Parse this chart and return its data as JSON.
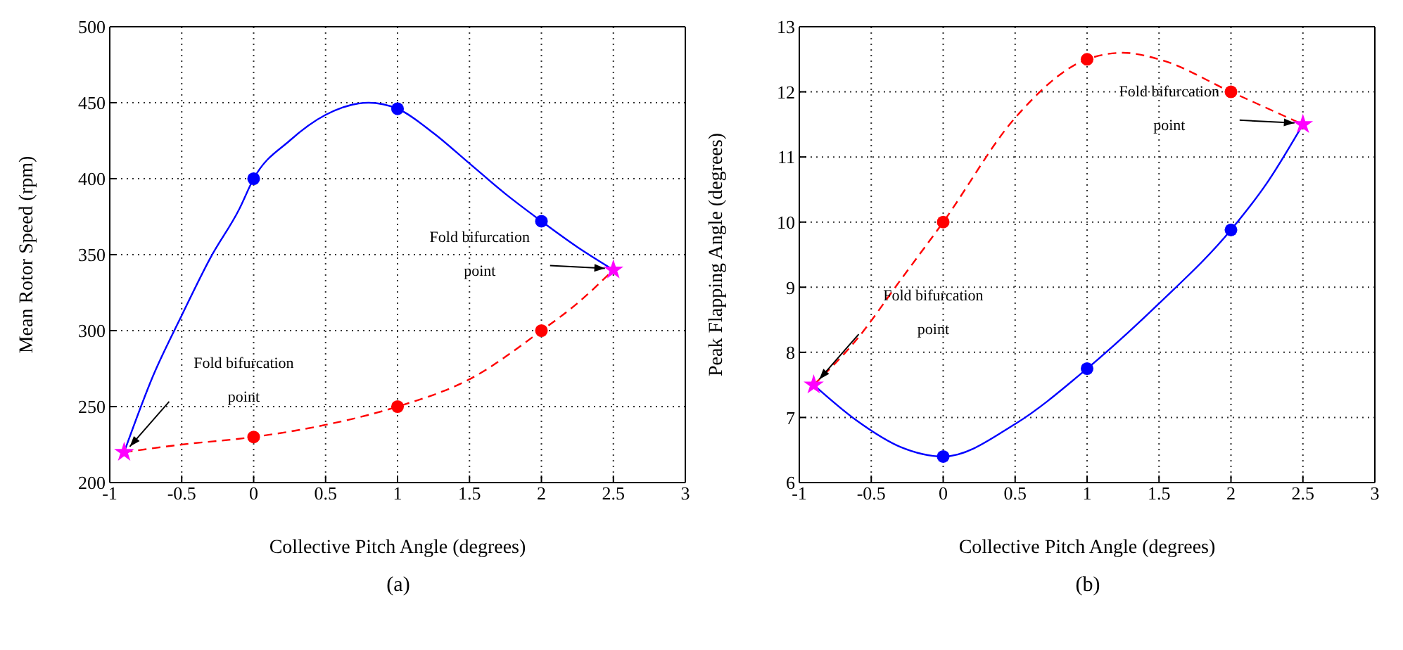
{
  "chart_data": [
    {
      "type": "line",
      "title": "(a)",
      "xlabel": "Collective Pitch Angle (degrees)",
      "ylabel": "Mean Rotor Speed (rpm)",
      "xlim": [
        -1,
        3
      ],
      "xticks": [
        -1,
        -0.5,
        0,
        0.5,
        1,
        1.5,
        2,
        2.5,
        3
      ],
      "ylim": [
        200,
        500
      ],
      "yticks": [
        200,
        250,
        300,
        350,
        400,
        450,
        500
      ],
      "grid": true,
      "series": [
        {
          "color": "#0000ff",
          "line_style": "solid",
          "marker": "none",
          "x": [
            -0.9,
            -0.7,
            -0.5,
            -0.3,
            -0.1,
            0,
            0.25,
            0.5,
            0.8,
            1,
            1.25,
            1.5,
            1.75,
            2,
            2.25,
            2.5
          ],
          "values": [
            220,
            270,
            310,
            348,
            380,
            400,
            425,
            442,
            450,
            446,
            430,
            410,
            390,
            372,
            355,
            340
          ]
        },
        {
          "color": "#ff0000",
          "line_style": "dashed",
          "marker": "none",
          "x": [
            -0.9,
            -0.5,
            0,
            0.5,
            1,
            1.5,
            2,
            2.25,
            2.5
          ],
          "values": [
            220,
            225,
            230,
            238,
            250,
            268,
            300,
            318,
            340
          ]
        },
        {
          "type": "scatter",
          "color": "#0000ff",
          "marker": "circle",
          "x": [
            0,
            1,
            2
          ],
          "values": [
            400,
            446,
            372
          ]
        },
        {
          "type": "scatter",
          "color": "#ff0000",
          "marker": "circle",
          "x": [
            0,
            1,
            2
          ],
          "values": [
            230,
            250,
            300
          ]
        },
        {
          "type": "scatter",
          "color": "#ff00ff",
          "marker": "star",
          "x": [
            -0.9,
            2.5
          ],
          "values": [
            220,
            340
          ]
        }
      ],
      "annotations": [
        "Fold bifurcation point",
        "Fold bifurcation point"
      ]
    },
    {
      "type": "line",
      "title": "(b)",
      "xlabel": "Collective Pitch Angle (degrees)",
      "ylabel": "Peak Flapping Angle (degrees)",
      "xlim": [
        -1,
        3
      ],
      "xticks": [
        -1,
        -0.5,
        0,
        0.5,
        1,
        1.5,
        2,
        2.5,
        3
      ],
      "ylim": [
        6,
        13
      ],
      "yticks": [
        6,
        7,
        8,
        9,
        10,
        11,
        12,
        13
      ],
      "grid": true,
      "series": [
        {
          "color": "#0000ff",
          "line_style": "solid",
          "marker": "none",
          "x": [
            -0.9,
            -0.6,
            -0.3,
            0,
            0.5,
            1,
            1.5,
            2,
            2.25,
            2.5
          ],
          "values": [
            7.5,
            6.95,
            6.55,
            6.4,
            6.9,
            7.75,
            8.75,
            9.88,
            10.6,
            11.5
          ]
        },
        {
          "color": "#ff0000",
          "line_style": "dashed",
          "marker": "none",
          "x": [
            -0.9,
            -0.6,
            -0.3,
            0,
            0.5,
            1,
            1.25,
            1.5,
            2,
            2.5
          ],
          "values": [
            7.5,
            8.2,
            9.1,
            10,
            11.6,
            12.5,
            12.6,
            12.5,
            12,
            11.5
          ]
        },
        {
          "type": "scatter",
          "color": "#0000ff",
          "marker": "circle",
          "x": [
            0,
            1,
            2
          ],
          "values": [
            6.4,
            7.75,
            9.88
          ]
        },
        {
          "type": "scatter",
          "color": "#ff0000",
          "marker": "circle",
          "x": [
            0,
            1,
            2
          ],
          "values": [
            10,
            12.5,
            12
          ]
        },
        {
          "type": "scatter",
          "color": "#ff00ff",
          "marker": "star",
          "x": [
            -0.9,
            2.5
          ],
          "values": [
            7.5,
            11.5
          ]
        }
      ],
      "annotations": [
        "Fold bifurcation point",
        "Fold bifurcation point"
      ]
    }
  ]
}
